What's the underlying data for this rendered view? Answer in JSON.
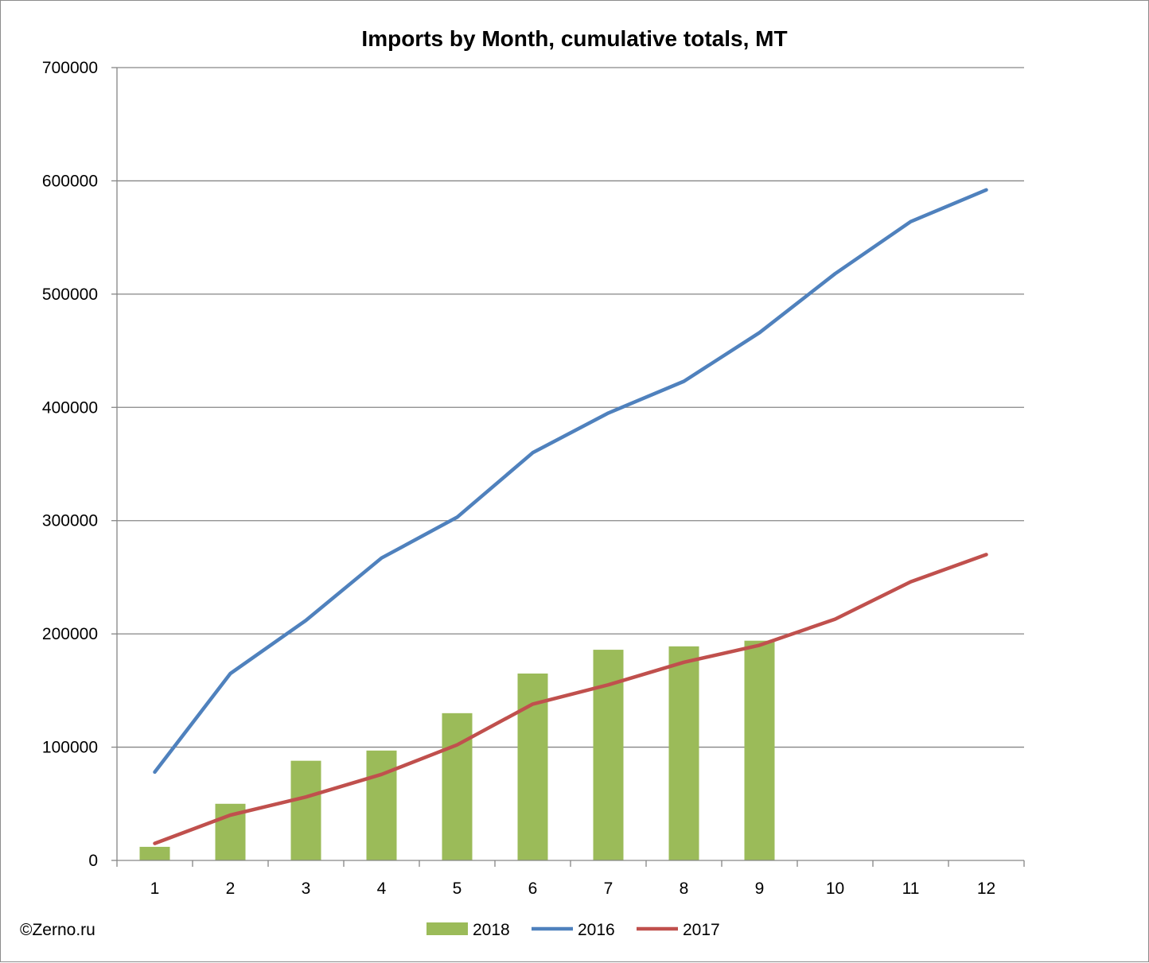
{
  "chart_data": {
    "type": "bar",
    "title": "Imports by Month, cumulative totals, MT",
    "xlabel": "",
    "ylabel": "",
    "categories": [
      "1",
      "2",
      "3",
      "4",
      "5",
      "6",
      "7",
      "8",
      "9",
      "10",
      "11",
      "12"
    ],
    "ylim": [
      0,
      700000
    ],
    "yticks": [
      0,
      100000,
      200000,
      300000,
      400000,
      500000,
      600000,
      700000
    ],
    "ytick_labels": [
      "0",
      "100000",
      "200000",
      "300000",
      "400000",
      "500000",
      "600000",
      "700000"
    ],
    "grid": true,
    "legend_position": "bottom",
    "series": [
      {
        "name": "2018",
        "type": "bar",
        "color": "#9bbb59",
        "values": [
          12000,
          50000,
          88000,
          97000,
          130000,
          165000,
          186000,
          189000,
          194000,
          null,
          null,
          null
        ]
      },
      {
        "name": "2016",
        "type": "line",
        "color": "#4f81bd",
        "values": [
          78000,
          165000,
          212000,
          267000,
          303000,
          360000,
          395000,
          423000,
          466000,
          518000,
          564000,
          592000
        ]
      },
      {
        "name": "2017",
        "type": "line",
        "color": "#c0504d",
        "values": [
          15000,
          40000,
          56000,
          76000,
          102000,
          138000,
          155000,
          175000,
          190000,
          213000,
          246000,
          270000
        ]
      }
    ]
  },
  "credit": "©Zerno.ru"
}
